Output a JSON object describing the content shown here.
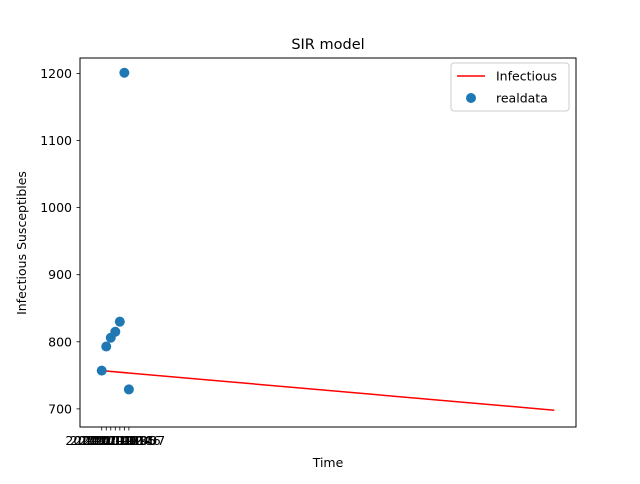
{
  "chart_data": {
    "type": "line",
    "title": "SIR model",
    "xlabel": "Time",
    "ylabel": "Infectious Susceptibles",
    "ylim": [
      673,
      1223
    ],
    "yticks": [
      700,
      800,
      900,
      1000,
      1100,
      1200
    ],
    "xlim": [
      -4.8,
      104.8
    ],
    "xtick_values": [
      0,
      1,
      2,
      3,
      4,
      5,
      6
    ],
    "xtick_labels": [
      "2020-01-01",
      "2020-01-02",
      "2020-01-03",
      "2020-01-04",
      "2020-01-05",
      "2020-01-06",
      "2020-01-07"
    ],
    "series": [
      {
        "name": "Infectious",
        "kind": "line",
        "color": "#ff0000",
        "x": [
          0,
          100
        ],
        "y": [
          757,
          698
        ]
      },
      {
        "name": "realdata",
        "kind": "scatter",
        "color": "#1f77b4",
        "x": [
          0,
          1,
          2,
          3,
          4,
          5,
          6
        ],
        "y": [
          757,
          793,
          806,
          815,
          830,
          1201,
          729
        ]
      }
    ],
    "legend": {
      "position": "top-right",
      "entries": [
        "Infectious",
        "realdata"
      ]
    },
    "grid": false
  }
}
